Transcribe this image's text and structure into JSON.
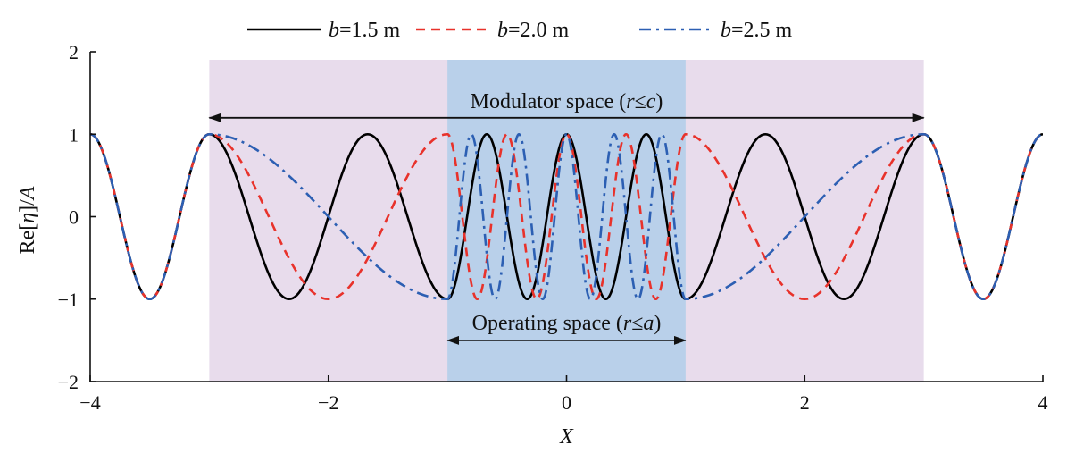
{
  "chart_data": {
    "type": "line",
    "xlabel": "X",
    "ylabel_parts": [
      "Re[",
      "η",
      "]/",
      "A"
    ],
    "xlim": [
      -4,
      4
    ],
    "ylim": [
      -2,
      2
    ],
    "x_ticks": [
      -4,
      -2,
      0,
      2,
      4
    ],
    "x_tick_labels": [
      "−4",
      "−2",
      "0",
      "2",
      "4"
    ],
    "y_ticks": [
      -2,
      -1,
      0,
      1,
      2
    ],
    "y_tick_labels": [
      "−2",
      "−1",
      "0",
      "1",
      "2"
    ],
    "grid": false,
    "legend_position": "top",
    "regions": [
      {
        "name": "modulator",
        "x_range": [
          -3,
          3
        ],
        "color": "#e8dcec"
      },
      {
        "name": "operating",
        "x_range": [
          -1,
          1
        ],
        "color": "#b9d0ea"
      }
    ],
    "annotations": [
      {
        "id": "modulator",
        "text_parts": [
          "Modulator space (",
          "r",
          "≤",
          "c",
          ")"
        ],
        "x_range": [
          -3,
          3
        ],
        "arrow_y": 1.2
      },
      {
        "id": "operating",
        "text_parts": [
          "Operating space (",
          "r",
          "≤",
          "a",
          ")"
        ],
        "x_range": [
          -1,
          1
        ],
        "arrow_y": -1.5
      }
    ],
    "series": [
      {
        "label_var": "b",
        "label_value": "=1.5 m",
        "b": 1.5,
        "color": "#000000",
        "style": "solid",
        "x": [
          -4,
          -3.5,
          -3,
          -2.33,
          -1.67,
          -1,
          -0.67,
          -0.33,
          0,
          0.33,
          0.67,
          1,
          1.67,
          2.33,
          3,
          3.5,
          4
        ],
        "y": [
          1,
          -1,
          1,
          -1,
          1,
          -1,
          1,
          -1,
          1,
          -1,
          1,
          -1,
          1,
          -1,
          1,
          -1,
          1
        ]
      },
      {
        "label_var": "b",
        "label_value": "=2.0 m",
        "b": 2.0,
        "color": "#e8322b",
        "style": "dashed",
        "x": [
          -4,
          -3.5,
          -3,
          -2.0,
          -1.0,
          -0.75,
          -0.5,
          -0.25,
          0,
          0.25,
          0.5,
          0.75,
          1.0,
          2.0,
          3,
          3.5,
          4
        ],
        "y": [
          1,
          -1,
          1,
          -1,
          1,
          -1,
          1,
          -1,
          1,
          -1,
          1,
          -1,
          1,
          -1,
          1,
          -1,
          1
        ]
      },
      {
        "label_var": "b",
        "label_value": "=2.5 m",
        "b": 2.5,
        "color": "#2c5fb3",
        "style": "dashdot",
        "x": [
          -4,
          -3.5,
          -3,
          -1.0,
          -0.8,
          -0.6,
          -0.4,
          -0.2,
          0,
          0.2,
          0.4,
          0.6,
          0.8,
          1.0,
          3,
          3.5,
          4
        ],
        "y": [
          1,
          -1,
          1,
          -1,
          1,
          -1,
          1,
          -1,
          1,
          -1,
          1,
          -1,
          1,
          -1,
          1,
          -1,
          1
        ]
      }
    ]
  }
}
